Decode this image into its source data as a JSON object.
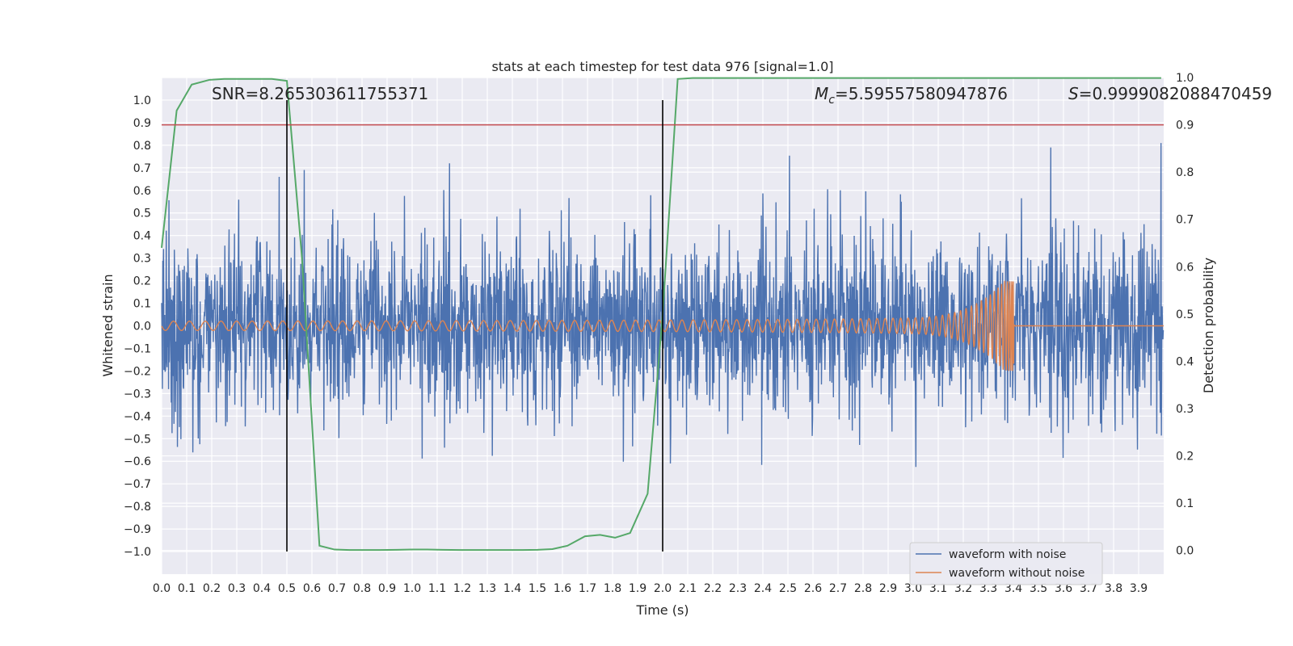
{
  "chart_data": {
    "type": "line",
    "title": "stats at each timestep for test data 976 [signal=1.0]",
    "xlabel": "Time (s)",
    "ylabel": "Whitened strain",
    "ylabel_right": "Detection probability",
    "xlim": [
      0.0,
      4.0
    ],
    "ylim": [
      -1.1,
      1.1
    ],
    "ylim_right": [
      -0.05,
      1.0
    ],
    "x_ticks": [
      "0.0",
      "0.1",
      "0.2",
      "0.3",
      "0.4",
      "0.5",
      "0.6",
      "0.7",
      "0.8",
      "0.9",
      "1.0",
      "1.1",
      "1.2",
      "1.3",
      "1.4",
      "1.5",
      "1.6",
      "1.7",
      "1.8",
      "1.9",
      "2.0",
      "2.1",
      "2.2",
      "2.3",
      "2.4",
      "2.5",
      "2.6",
      "2.7",
      "2.8",
      "2.9",
      "3.0",
      "3.1",
      "3.2",
      "3.3",
      "3.4",
      "3.5",
      "3.6",
      "3.7",
      "3.8",
      "3.9"
    ],
    "y_ticks": [
      "1.0",
      "0.9",
      "0.8",
      "0.7",
      "0.6",
      "0.5",
      "0.4",
      "0.3",
      "0.2",
      "0.1",
      "0.0",
      "−0.1",
      "−0.2",
      "−0.3",
      "−0.4",
      "−0.5",
      "−0.6",
      "−0.7",
      "−0.8",
      "−0.9",
      "−1.0"
    ],
    "y_ticks_right": [
      "1.0",
      "0.9",
      "0.8",
      "0.7",
      "0.6",
      "0.5",
      "0.4",
      "0.3",
      "0.2",
      "0.1",
      "0.0"
    ],
    "annotations": {
      "snr": "SNR=8.265303611755371",
      "mc_symbol": "M",
      "mc_sub": "c",
      "mc_value": "=5.59557580947876",
      "s_symbol": "S",
      "s_value": "=0.9999082088470459"
    },
    "threshold_line": {
      "y_right": 0.9,
      "color": "#c44e52"
    },
    "vertical_lines": [
      0.5,
      2.0
    ],
    "series": [
      {
        "name": "waveform with noise",
        "color": "#4c72b0",
        "description": "whitened noisy strain, roughly uniform amplitude ~0.4 with spikes up to ~0.98"
      },
      {
        "name": "waveform without noise",
        "color": "#dd8452",
        "description": "chirp rising from amplitude ~0.02 to ~0.2 until merger at 3.4 s"
      },
      {
        "name": "detection probability",
        "color": "#55a868",
        "x": [
          0.0,
          0.06,
          0.12,
          0.19,
          0.25,
          0.31,
          0.37,
          0.44,
          0.5,
          0.56,
          0.63,
          0.69,
          0.75,
          0.81,
          0.87,
          0.94,
          1.0,
          1.06,
          1.12,
          1.19,
          1.25,
          1.31,
          1.37,
          1.44,
          1.5,
          1.56,
          1.62,
          1.69,
          1.75,
          1.81,
          1.87,
          1.94,
          2.0,
          2.06,
          2.12,
          2.19,
          2.25,
          2.31,
          2.37,
          2.5,
          2.75,
          3.0,
          3.25,
          3.5,
          3.75,
          3.99
        ],
        "values": [
          0.64,
          0.93,
          0.985,
          0.995,
          0.997,
          0.997,
          0.997,
          0.997,
          0.993,
          0.62,
          0.01,
          0.002,
          0.001,
          0.001,
          0.001,
          0.0015,
          0.002,
          0.002,
          0.0015,
          0.001,
          0.001,
          0.001,
          0.001,
          0.001,
          0.0015,
          0.003,
          0.01,
          0.03,
          0.033,
          0.027,
          0.037,
          0.12,
          0.5,
          0.997,
          0.999,
          0.999,
          0.999,
          0.999,
          0.999,
          0.999,
          0.999,
          0.999,
          0.999,
          0.999,
          0.999,
          0.999
        ]
      }
    ],
    "legend": {
      "placement": "bottom-right",
      "entries": [
        "waveform with noise",
        "waveform without noise"
      ]
    },
    "grid": true,
    "background": "#eaeaf2"
  }
}
